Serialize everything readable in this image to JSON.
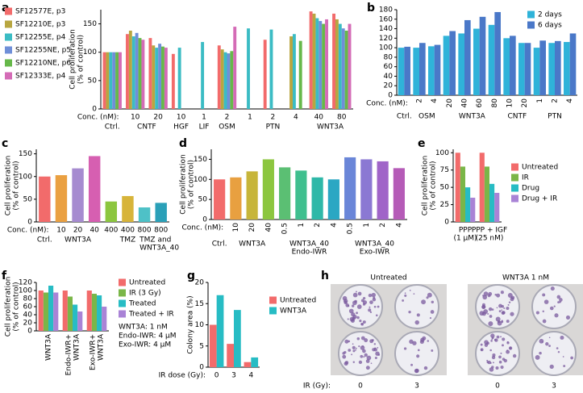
{
  "chart_data": [
    {
      "panel": "a",
      "type": "bar",
      "ylabel": [
        "Cell proliferation",
        "(% of control)"
      ],
      "xlabel": "Conc. (nM):",
      "categories": [
        null,
        "10",
        "20",
        "10",
        "1",
        "2",
        "1",
        "2",
        "4",
        "40",
        "80"
      ],
      "group": [
        "Ctrl.",
        "CNTF",
        "CNTF",
        "HGF",
        "LIF",
        "OSM",
        "PTN",
        "PTN",
        "PTN",
        "WNT3A",
        "WNT3A"
      ],
      "ylim": [
        0,
        175
      ],
      "yticks": [
        0,
        50,
        100,
        150
      ],
      "legend": "left",
      "series": [
        {
          "name": "SF12577E, p3",
          "color": "#f26b6b",
          "values": [
            100,
            132,
            125,
            97,
            null,
            112,
            null,
            122,
            null,
            172,
            168
          ]
        },
        {
          "name": "SF12210E, p3",
          "color": "#b8a640",
          "values": [
            100,
            138,
            112,
            null,
            null,
            105,
            null,
            null,
            128,
            168,
            158
          ]
        },
        {
          "name": "SF12255E, p4",
          "color": "#3bbcc4",
          "values": [
            100,
            128,
            108,
            108,
            118,
            100,
            142,
            140,
            132,
            160,
            150
          ]
        },
        {
          "name": "SF12255NE, p5",
          "color": "#6f8fd8",
          "values": [
            100,
            134,
            115,
            null,
            null,
            98,
            null,
            null,
            null,
            155,
            142
          ]
        },
        {
          "name": "SF12210NE, p6",
          "color": "#66b84a",
          "values": [
            100,
            125,
            110,
            null,
            null,
            102,
            null,
            null,
            120,
            150,
            138
          ]
        },
        {
          "name": "SF12333E, p4",
          "color": "#d46bb6",
          "values": [
            100,
            122,
            108,
            null,
            null,
            145,
            null,
            null,
            null,
            158,
            150
          ]
        }
      ]
    },
    {
      "panel": "b",
      "type": "bar",
      "xlabel": "Conc. (nM):",
      "rotate_labels": true,
      "categories": [
        null,
        "2",
        "4",
        "20",
        "40",
        "60",
        "80",
        "10",
        "20",
        "1",
        "2",
        "4"
      ],
      "group": [
        "Ctrl.",
        "OSM",
        "OSM",
        "WNT3A",
        "WNT3A",
        "WNT3A",
        "WNT3A",
        "CNTF",
        "CNTF",
        "PTN",
        "PTN",
        "PTN"
      ],
      "ylim": [
        0,
        180
      ],
      "yticks": [
        0,
        20,
        40,
        60,
        80,
        100,
        120,
        140,
        160,
        180
      ],
      "legend": "top-right",
      "series": [
        {
          "name": "2 days",
          "color": "#2fb3d9",
          "values": [
            100,
            100,
            103,
            125,
            130,
            140,
            148,
            120,
            110,
            100,
            110,
            112
          ]
        },
        {
          "name": "6 days",
          "color": "#4a78c8",
          "values": [
            102,
            110,
            106,
            135,
            158,
            165,
            175,
            125,
            110,
            115,
            114,
            130
          ]
        }
      ]
    },
    {
      "panel": "c",
      "type": "bar",
      "ylabel": [
        "Cell proliferation",
        "(% of control)"
      ],
      "xlabel": "Conc. (nM):",
      "categories": [
        null,
        "10",
        "20",
        "40",
        "400",
        "400",
        "800",
        "800"
      ],
      "category_colors": [
        "#000000",
        "#000000",
        "#000000",
        "#000000",
        "#e0413f",
        "#2a9fd6",
        "#e0413f",
        "#2a9fd6"
      ],
      "group": [
        "Ctrl.",
        "WNT3A",
        "WNT3A",
        "WNT3A",
        "TMZ",
        [
          "TMZ and",
          "WNT3A_40"
        ],
        "TMZ",
        [
          "TMZ and",
          "WNT3A_40"
        ]
      ],
      "group_colors": [
        "#000000",
        "#000000",
        "#000000",
        "#000000",
        "#e0413f",
        "#2a9fd6",
        "#e0413f",
        "#2a9fd6"
      ],
      "ylim": [
        0,
        160
      ],
      "yticks": [
        0,
        50,
        100,
        150
      ],
      "values": [
        100,
        103,
        118,
        145,
        45,
        57,
        32,
        42
      ],
      "colors": [
        "#f26b6b",
        "#eaa041",
        "#a68bd0",
        "#d65fb1",
        "#8cc63f",
        "#d7b43a",
        "#4ec1c7",
        "#2aa0b8"
      ]
    },
    {
      "panel": "d",
      "type": "bar",
      "ylabel": [
        "Cell proliferation",
        "(% of control)"
      ],
      "xlabel": "Conc. (nM):",
      "rotate_labels": true,
      "categories": [
        null,
        "10",
        "20",
        "40",
        "0.5",
        "1",
        "2",
        "4",
        "0.5",
        "1",
        "2",
        "4"
      ],
      "group": [
        "Ctrl.",
        "WNT3A",
        "WNT3A",
        "WNT3A",
        [
          "WNT3A_40",
          "Endo-IWR"
        ],
        [
          "WNT3A_40",
          "Endo-IWR"
        ],
        [
          "WNT3A_40",
          "Endo-IWR"
        ],
        [
          "WNT3A_40",
          "Endo-IWR"
        ],
        [
          "WNT3A_40",
          "Exo-IWR"
        ],
        [
          "WNT3A_40",
          "Exo-IWR"
        ],
        [
          "WNT3A_40",
          "Exo-IWR"
        ],
        [
          "WNT3A_40",
          "Exo-IWR"
        ]
      ],
      "ylim": [
        0,
        175
      ],
      "yticks": [
        0,
        50,
        100,
        150
      ],
      "values": [
        100,
        105,
        120,
        150,
        130,
        122,
        105,
        100,
        155,
        150,
        145,
        128
      ],
      "colors": [
        "#f26b6b",
        "#e8a040",
        "#c7b53a",
        "#8cc63f",
        "#5bbf73",
        "#3fbf8e",
        "#2eb8a8",
        "#2ba7c3",
        "#6a86d8",
        "#8b78d3",
        "#a064c8",
        "#b55bb7"
      ]
    },
    {
      "panel": "e",
      "type": "bar",
      "ylabel": [
        "Cell proliferation",
        "(% of control)"
      ],
      "categories": [
        [
          "PPP",
          "(1 µM)"
        ],
        [
          "PPP + IGF",
          "(25 nM)"
        ]
      ],
      "ylim": [
        0,
        105
      ],
      "yticks": [
        0,
        25,
        50,
        75,
        100
      ],
      "legend": "right",
      "series": [
        {
          "name": "Untreated",
          "color": "#f26b6b",
          "values": [
            100,
            100
          ]
        },
        {
          "name": "IR",
          "color": "#7ab648",
          "values": [
            80,
            80
          ]
        },
        {
          "name": "Drug",
          "color": "#27bcc4",
          "values": [
            50,
            55
          ]
        },
        {
          "name": "Drug + IR",
          "color": "#a983d6",
          "values": [
            35,
            42
          ]
        }
      ]
    },
    {
      "panel": "f",
      "type": "bar",
      "ylabel": [
        "Cell proliferation",
        "(% of control)"
      ],
      "rotate_labels": true,
      "categories": [
        "WNT3A",
        [
          "Endo-IWR+",
          "WNT3A"
        ],
        [
          "Exo-IWR+",
          "WNT3A"
        ]
      ],
      "ylim": [
        0,
        120
      ],
      "yticks": [
        0,
        20,
        40,
        60,
        80,
        100,
        120
      ],
      "legend": "right",
      "notes": [
        "WNT3A: 1 nM",
        "Endo-IWR: 4 µM",
        "Exo-IWR: 4 µM"
      ],
      "series": [
        {
          "name": "Untreated",
          "color": "#f26b6b",
          "values": [
            100,
            100,
            100
          ]
        },
        {
          "name": "IR (3 Gy)",
          "color": "#7ab648",
          "values": [
            95,
            85,
            92
          ]
        },
        {
          "name": "Treated",
          "color": "#27bcc4",
          "values": [
            112,
            65,
            88
          ]
        },
        {
          "name": "Treated + IR",
          "color": "#a983d6",
          "values": [
            95,
            48,
            60
          ]
        }
      ]
    },
    {
      "panel": "g",
      "type": "bar",
      "ylabel": "Colony area (%)",
      "xlabel": "IR dose (Gy):",
      "categories": [
        "0",
        "3",
        "4"
      ],
      "ylim": [
        0,
        20
      ],
      "yticks": [
        0,
        5,
        10,
        15,
        20
      ],
      "legend": "right",
      "series": [
        {
          "name": "Untreated",
          "color": "#f26b6b",
          "values": [
            10,
            5.5,
            1.2
          ]
        },
        {
          "name": "WNT3A",
          "color": "#27bcc4",
          "values": [
            17,
            13.5,
            2.3
          ]
        }
      ]
    }
  ],
  "panel_h": {
    "panel": "h",
    "titles": [
      "Untreated",
      "WNT3A 1 nM"
    ],
    "xlabel": "IR (Gy):",
    "doses": [
      "0",
      "3",
      "0",
      "3"
    ]
  }
}
